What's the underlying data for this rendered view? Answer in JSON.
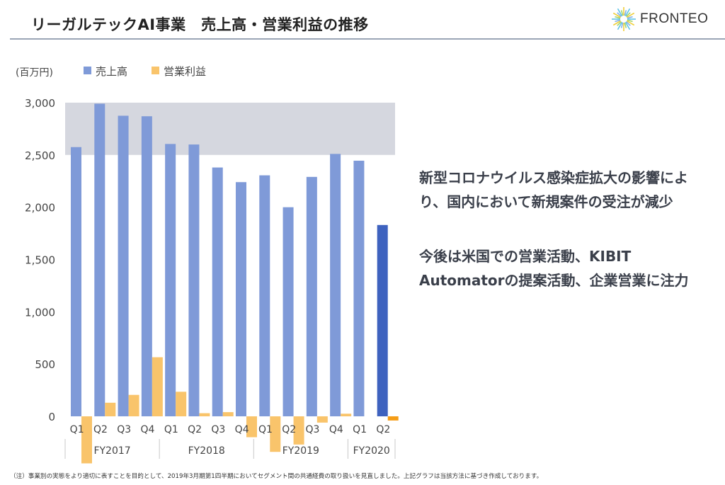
{
  "header": {
    "title": "リーガルテックAI事業　売上高・営業利益の推移",
    "logo_text": "FRONTEO",
    "logo_icon": "sunburst-icon"
  },
  "chart_data": {
    "type": "bar",
    "unit_label": "(百万円)",
    "legend": [
      {
        "name": "売上高",
        "color": "#7f9ad8"
      },
      {
        "name": "営業利益",
        "color": "#f9c46b"
      }
    ],
    "legend_placement": "top-left",
    "ylim": [
      -400,
      3000
    ],
    "yticks": [
      0,
      500,
      1000,
      1500,
      2000,
      2500,
      3000
    ],
    "ytick_labels": [
      "0",
      "500",
      "1,000",
      "1,500",
      "2,000",
      "2,500",
      "3,000"
    ],
    "highlight_band": [
      2500,
      3000
    ],
    "highlight_color": "#d5d7df",
    "categories": [
      "Q1",
      "Q2",
      "Q3",
      "Q4",
      "Q1",
      "Q2",
      "Q3",
      "Q4",
      "Q1",
      "Q2",
      "Q3",
      "Q4",
      "Q1",
      "Q2"
    ],
    "groups": [
      {
        "label": "FY2017",
        "size": 4
      },
      {
        "label": "FY2018",
        "size": 4
      },
      {
        "label": "FY2019",
        "size": 4
      },
      {
        "label": "FY2020",
        "size": 2
      }
    ],
    "series": [
      {
        "name": "売上高",
        "values": [
          2575,
          2990,
          2875,
          2870,
          2605,
          2600,
          2380,
          2240,
          2305,
          2000,
          2290,
          2510,
          2445,
          1830
        ]
      },
      {
        "name": "営業利益",
        "values": [
          -450,
          130,
          205,
          565,
          235,
          30,
          40,
          -200,
          -340,
          -270,
          -60,
          25,
          0,
          -40
        ]
      }
    ],
    "latest_colors": {
      "売上高": "#3e62bf",
      "営業利益": "#f59d16"
    },
    "grid": false
  },
  "messages": [
    "新型コロナウイルス感染症拡大の影響により、国内において新規案件の受注が減少",
    "今後は米国での営業活動、KIBIT Automatorの提案活動、企業営業に注力"
  ],
  "footnote": "（注）事業別の実態をより適切に表すことを目的として、2019年3月期第1四半期においてセグメント間の共通経費の取り扱いを見直しました。上記グラフは当該方法に基づき作成しております。"
}
